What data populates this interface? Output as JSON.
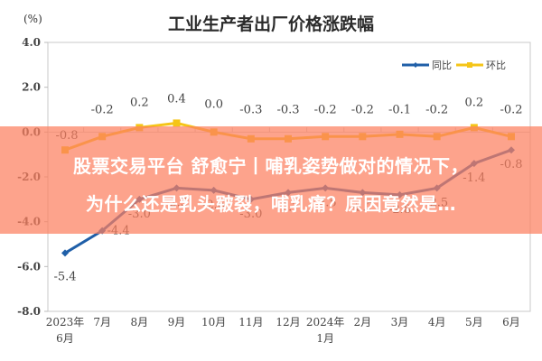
{
  "title": "工业生产者出厂价格涨跌幅",
  "unit_label": "(%)",
  "legend": [
    {
      "label": "同比",
      "color": "#1f5fa8"
    },
    {
      "label": "环比",
      "color": "#f5c518"
    }
  ],
  "overlay": {
    "line1": "股票交易平台 舒愈宁丨哺乳姿势做对的情况下，",
    "line2": "为什么还是乳头皲裂，哺乳痛？原因竟然是…",
    "color": "#fc8060"
  },
  "chart_data": {
    "type": "line",
    "title": "工业生产者出厂价格涨跌幅",
    "xlabel": "",
    "ylabel": "(%)",
    "ylim": [
      -8.0,
      4.0
    ],
    "yticks": [
      4.0,
      2.0,
      0.0,
      -2.0,
      -4.0,
      -6.0,
      -8.0
    ],
    "grid": false,
    "legend_position": "upper right",
    "categories": [
      "2023年\n6月",
      "7月",
      "8月",
      "9月",
      "10月",
      "11月",
      "12月",
      "2024年\n1月",
      "2月",
      "3月",
      "4月",
      "5月",
      "6月"
    ],
    "series": [
      {
        "name": "同比",
        "color": "#1f5fa8",
        "values": [
          -5.4,
          -4.4,
          -3.0,
          -2.5,
          -2.6,
          -3.0,
          -2.7,
          -2.5,
          -2.7,
          -2.8,
          -2.5,
          -1.4,
          -0.8
        ]
      },
      {
        "name": "环比",
        "color": "#f5c518",
        "values": [
          -0.8,
          -0.2,
          0.2,
          0.4,
          0.0,
          -0.3,
          -0.3,
          -0.2,
          -0.2,
          -0.1,
          -0.2,
          0.2,
          -0.2
        ]
      }
    ]
  }
}
